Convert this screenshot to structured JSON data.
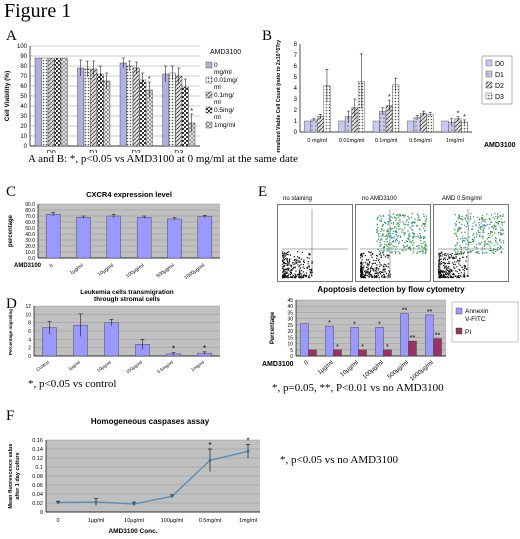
{
  "figure_title": "Figure 1",
  "notes": {
    "ab": "A and B: *, p<0.05 vs AMD3100 at 0 mg/ml at the same date",
    "d": "*, p<0.05 vs control",
    "e": "*, p=0.05, **, P<0.01 vs no AMD3100",
    "f": "*, p<0.05 vs no AMD3100"
  },
  "flow_labels": [
    "no staining",
    "no AMD3100",
    "AMD 0.5mg/ml"
  ],
  "colors": {
    "light_blue": "#9999ff",
    "maroon": "#993366",
    "gray_plot": "#c0c0c0",
    "line_blue": "#5b8fb7"
  },
  "chart_data": [
    {
      "id": "A",
      "type": "bar",
      "letter": "A",
      "legend_title": "AMD3100",
      "ylabel": "Cell Viability (%)",
      "ylim": [
        0,
        100
      ],
      "yticks": [
        "0",
        "10",
        "20",
        "30",
        "40",
        "50",
        "60",
        "70",
        "80",
        "90",
        "100"
      ],
      "categories": [
        "D0",
        "D1",
        "D2",
        "D3"
      ],
      "series": [
        {
          "name": "0 mg/ml",
          "values": [
            88,
            78,
            83,
            72
          ],
          "err": [
            0,
            8,
            5,
            8
          ]
        },
        {
          "name": "0.01mg/ ml",
          "values": [
            88,
            77,
            80,
            73
          ],
          "err": [
            0,
            8,
            5,
            7
          ]
        },
        {
          "name": "0.1mg/ ml",
          "values": [
            88,
            77,
            78,
            70
          ],
          "err": [
            0,
            8,
            6,
            8
          ]
        },
        {
          "name": "0.5mg/ ml",
          "values": [
            88,
            72,
            66,
            59
          ],
          "err": [
            0,
            8,
            7,
            8
          ]
        },
        {
          "name": "1mg/ml",
          "values": [
            88,
            65,
            56,
            23
          ],
          "err": [
            0,
            8,
            8,
            9
          ]
        }
      ],
      "stars": [
        [
          2,
          4
        ],
        [
          3,
          4
        ]
      ]
    },
    {
      "id": "B",
      "type": "bar",
      "letter": "B",
      "legend_title": "AMD3100",
      "ylabel": "Normalized Viable Cell Count (ratio to 2x10^5Trypan blue)",
      "ylim": [
        0,
        8
      ],
      "yticks": [
        "0",
        "1",
        "2",
        "3",
        "4",
        "5",
        "6",
        "7",
        "8"
      ],
      "categories": [
        "0 mg/ml",
        "0.01mg/ml",
        "0.1mg/ml",
        "0.5mg/ml",
        "1mg/ml"
      ],
      "series": [
        {
          "name": "D0",
          "values": [
            1,
            1,
            1,
            1,
            1
          ],
          "err": [
            0,
            0,
            0,
            0,
            0
          ]
        },
        {
          "name": "D1",
          "values": [
            1.1,
            1.4,
            1.9,
            1.3,
            0.9
          ],
          "err": [
            0.1,
            0.5,
            0.3,
            0.2,
            0.3
          ]
        },
        {
          "name": "D2",
          "values": [
            1.4,
            2.2,
            2.4,
            1.7,
            1.2
          ],
          "err": [
            0.2,
            0.8,
            0.5,
            0.2,
            0.2
          ]
        },
        {
          "name": "D3",
          "values": [
            4.2,
            4.6,
            4.3,
            1.6,
            0.9
          ],
          "err": [
            1.5,
            2.5,
            0.6,
            0.2,
            0.2
          ]
        }
      ],
      "stars": [
        [
          2,
          2
        ],
        [
          4,
          2
        ],
        [
          4,
          3
        ]
      ]
    },
    {
      "id": "C",
      "type": "bar",
      "letter": "C",
      "title": "CXCR4 expression level",
      "ylabel": "percentage",
      "ylim": [
        0,
        90
      ],
      "yticks": [
        "0.0",
        "10.0",
        "20.0",
        "30.0",
        "40.0",
        "50.0",
        "60.0",
        "70.0",
        "80.0",
        "90.0"
      ],
      "xlabel": "AMD3100",
      "categories": [
        "0",
        "1µg/ml",
        "10µg/ml",
        "100µg/ml",
        "500µg/ml",
        "1000µg/ml"
      ],
      "values": [
        73,
        68,
        70,
        68,
        65,
        69
      ],
      "err": [
        3,
        2,
        3,
        2,
        2,
        2
      ]
    },
    {
      "id": "D",
      "type": "bar",
      "letter": "D",
      "title": "Leukemia cells transmigration through stromal cells",
      "ylabel": "Percentage migrating",
      "ylim": [
        0,
        12
      ],
      "yticks": [
        "0",
        "2",
        "4",
        "6",
        "8",
        "10",
        "12"
      ],
      "categories": [
        "Control",
        "1µg/ml",
        "10µg/ml",
        "100µg/ml",
        "0.5mg/ml",
        "1mg/ml"
      ],
      "values": [
        6.8,
        7.4,
        8.0,
        2.8,
        0.5,
        0.7
      ],
      "err": [
        1.5,
        2.7,
        0.8,
        1.2,
        0.3,
        0.3
      ],
      "stars": [
        4,
        5
      ]
    },
    {
      "id": "E",
      "type": "bar",
      "letter": "E",
      "title": "Apoptosis detection by flow cytometry",
      "ylabel": "Percentage",
      "ylim": [
        0,
        45
      ],
      "yticks": [
        "0",
        "5",
        "10",
        "15",
        "20",
        "25",
        "30",
        "35",
        "40",
        "45"
      ],
      "xlabel": "AMD3100",
      "categories": [
        "0",
        "1µg/ml",
        "10µg/ml",
        "100µg/ml",
        "500µg/ml",
        "1000µg/ml"
      ],
      "series": [
        {
          "name": "Annexin V-FITC",
          "values": [
            26,
            24,
            23,
            23,
            34,
            33
          ]
        },
        {
          "name": "PI",
          "values": [
            5,
            5,
            5,
            5,
            12,
            14
          ]
        }
      ],
      "stars": [
        "",
        "*",
        "*",
        "*",
        "**",
        "**"
      ]
    },
    {
      "id": "F",
      "type": "line",
      "letter": "F",
      "title": "Homogeneous caspases assay",
      "ylabel": "Mean fluorescence value after 1 day culture",
      "xlabel": "AMD3100  Conc.",
      "ylim": [
        0,
        0.16
      ],
      "yticks": [
        "0",
        "0.02",
        "0.04",
        "0.06",
        "0.08",
        "0.1",
        "0.12",
        "0.14",
        "0.16"
      ],
      "categories": [
        "0",
        "1µg/ml",
        "10µg/ml",
        "100µg/ml",
        "0.5mg/ml",
        "1mg/ml"
      ],
      "values": [
        0.021,
        0.022,
        0.018,
        0.035,
        0.115,
        0.135
      ],
      "err": [
        0.003,
        0.008,
        0.004,
        0.003,
        0.025,
        0.015
      ],
      "stars": [
        4,
        5
      ]
    }
  ]
}
